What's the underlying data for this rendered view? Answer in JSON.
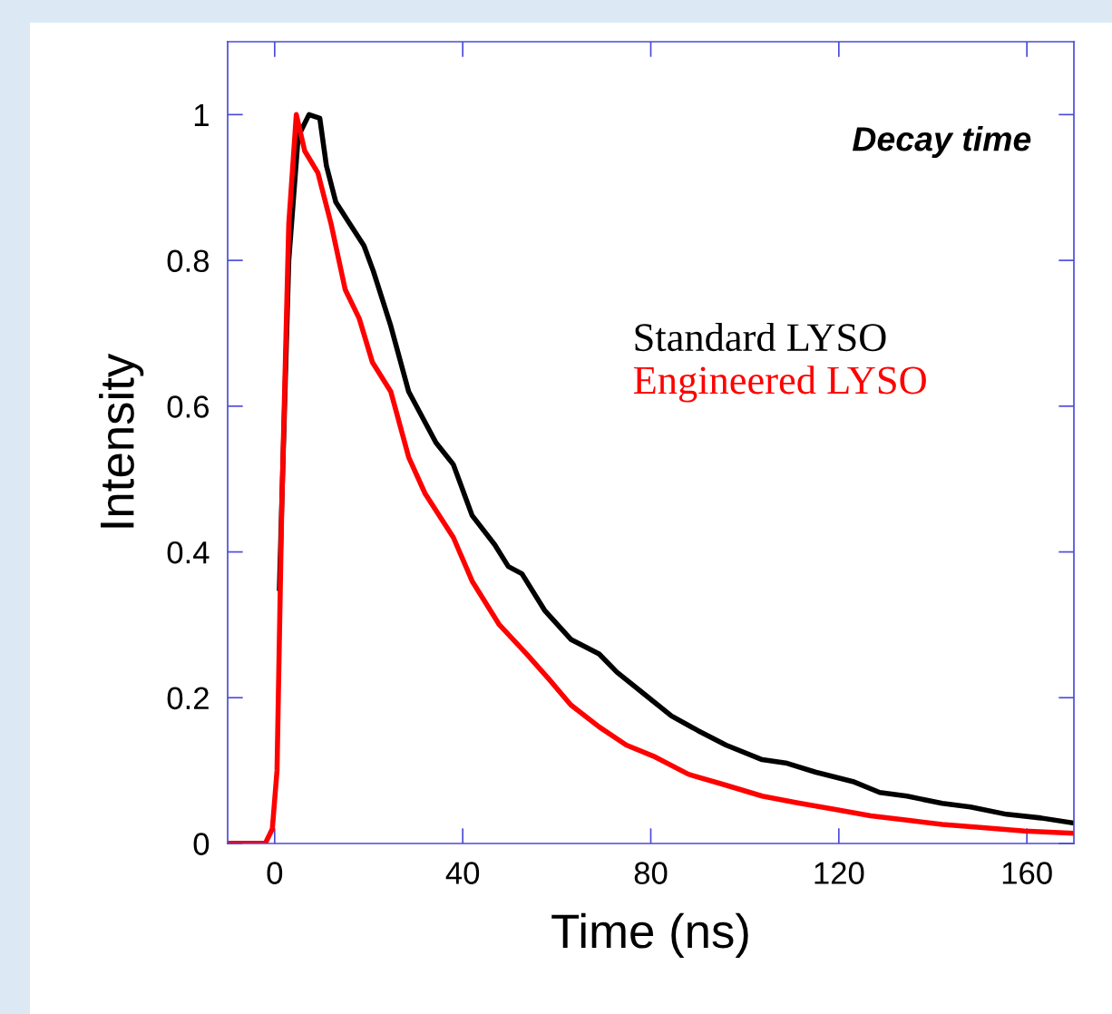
{
  "chart_data": {
    "type": "line",
    "xlabel": "Time (ns)",
    "ylabel": "Intensity",
    "annotations": [
      "Decay time"
    ],
    "xlim": [
      -10,
      170
    ],
    "ylim": [
      0,
      1.1
    ],
    "xticks": [
      0,
      40,
      80,
      120,
      160
    ],
    "yticks": [
      0,
      0.2,
      0.4,
      0.6,
      0.8,
      1
    ],
    "grid": false,
    "legend": "right",
    "line_style": "solid",
    "marker": "none",
    "series": [
      {
        "name": "Standard LYSO",
        "color": "#000000",
        "x": [
          -10,
          -2,
          -0.5,
          1,
          3,
          5,
          7.3,
          9.6,
          11,
          13,
          16,
          19,
          21,
          24.7,
          28.5,
          34.3,
          38,
          42,
          46.8,
          49.7,
          52.6,
          57.4,
          63,
          69,
          72.8,
          78.6,
          84.4,
          90,
          96,
          103.7,
          109,
          115,
          123,
          128.7,
          134.5,
          142,
          148,
          155.7,
          163,
          170
        ],
        "values": [
          0,
          0,
          null,
          0.35,
          0.8,
          0.97,
          1.0,
          0.995,
          0.93,
          0.88,
          0.85,
          0.82,
          0.785,
          0.71,
          0.62,
          0.55,
          0.52,
          0.45,
          0.41,
          0.38,
          0.37,
          0.32,
          0.28,
          0.26,
          0.235,
          0.205,
          0.175,
          0.155,
          0.135,
          0.115,
          0.11,
          0.098,
          0.085,
          0.07,
          0.065,
          0.055,
          0.05,
          0.04,
          0.035,
          0.028
        ]
      },
      {
        "name": "Engineered LYSO",
        "color": "#ff0000",
        "x": [
          -10,
          -2,
          -0.5,
          0.5,
          1.5,
          3,
          4.6,
          6.4,
          9.2,
          12,
          15,
          18,
          20.8,
          24.7,
          28.5,
          32,
          38,
          42,
          47.8,
          53.6,
          58.4,
          63,
          69,
          74.8,
          80.5,
          88,
          96,
          103.7,
          111,
          119,
          126.8,
          134.5,
          142,
          150,
          159.5,
          170
        ],
        "values": [
          0,
          0,
          0.02,
          0.1,
          0.46,
          0.85,
          1.0,
          0.95,
          0.92,
          0.85,
          0.76,
          0.72,
          0.66,
          0.62,
          0.53,
          0.48,
          0.42,
          0.36,
          0.3,
          0.26,
          0.225,
          0.19,
          0.16,
          0.135,
          0.12,
          0.095,
          0.08,
          0.065,
          0.056,
          0.047,
          0.038,
          0.032,
          0.026,
          0.022,
          0.017,
          0.014
        ]
      }
    ]
  }
}
